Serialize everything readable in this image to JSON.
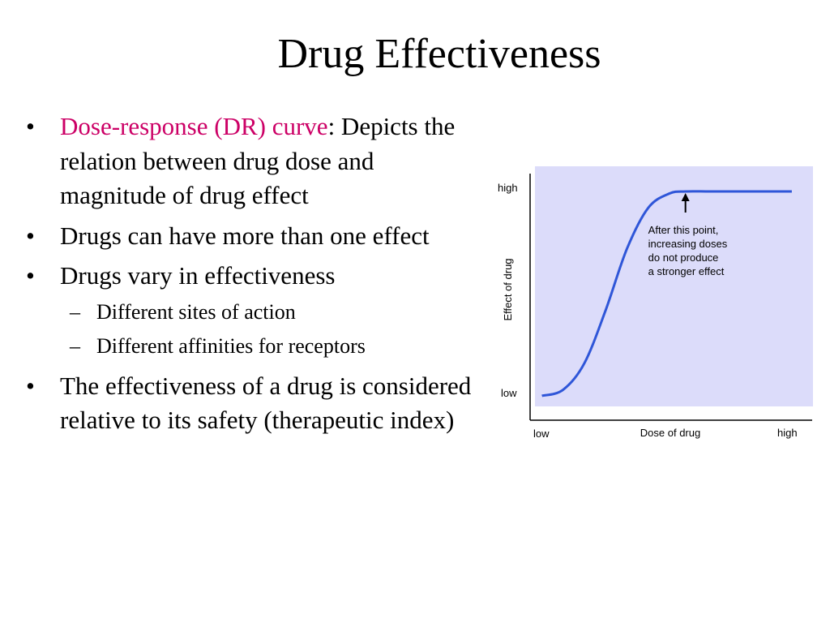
{
  "slide": {
    "title": "Drug Effectiveness"
  },
  "bullets": [
    {
      "highlight": "Dose-response (DR) curve",
      "text": ": Depicts the relation between drug dose and magnitude of drug effect"
    },
    {
      "text": "Drugs can have more than one effect"
    },
    {
      "text": "Drugs vary in effectiveness",
      "sub": [
        "Different sites of action",
        "Different affinities for receptors"
      ]
    },
    {
      "text": "The effectiveness of a drug is considered relative to its safety (therapeutic index)"
    }
  ],
  "bullet_marker": "•",
  "sub_marker": "–",
  "colors": {
    "highlight": "#cc0066",
    "plot_background": "#dcdcfa",
    "curve": "#2f56d8",
    "axis": "#000000"
  },
  "chart_data": {
    "type": "line",
    "title": "",
    "xlabel": "Dose of drug",
    "ylabel": "Effect of drug",
    "x_tick_labels": [
      "low",
      "high"
    ],
    "y_tick_labels": [
      "low",
      "high"
    ],
    "xlim": [
      0,
      1
    ],
    "ylim": [
      0,
      1
    ],
    "series": [
      {
        "x": [
          0.02,
          0.1,
          0.18,
          0.26,
          0.34,
          0.42,
          0.5,
          0.56,
          0.65,
          0.75,
          0.85,
          0.96
        ],
        "y": [
          0.0,
          0.03,
          0.16,
          0.42,
          0.72,
          0.92,
          0.99,
          1.0,
          1.0,
          1.0,
          1.0,
          1.0
        ]
      }
    ],
    "annotation": {
      "text": [
        "After this point,",
        "increasing doses",
        "do not produce",
        "a stronger effect"
      ],
      "x": 0.56,
      "y": 1.0
    },
    "grid": false,
    "legend": "none"
  }
}
